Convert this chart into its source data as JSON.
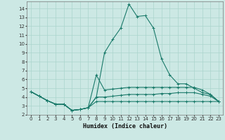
{
  "xlabel": "Humidex (Indice chaleur)",
  "ylabel": "",
  "xlim": [
    -0.5,
    23.5
  ],
  "ylim": [
    2,
    14.8
  ],
  "yticks": [
    2,
    3,
    4,
    5,
    6,
    7,
    8,
    9,
    10,
    11,
    12,
    13,
    14
  ],
  "xticks": [
    0,
    1,
    2,
    3,
    4,
    5,
    6,
    7,
    8,
    9,
    10,
    11,
    12,
    13,
    14,
    15,
    16,
    17,
    18,
    19,
    20,
    21,
    22,
    23
  ],
  "background_color": "#cce8e4",
  "grid_color": "#aad4cc",
  "line_color": "#1a7a6a",
  "lines": [
    {
      "x": [
        0,
        1,
        2,
        3,
        4,
        5,
        6,
        7,
        8,
        9,
        10,
        11,
        12,
        13,
        14,
        15,
        16,
        17,
        18,
        19,
        20,
        21,
        22,
        23
      ],
      "y": [
        4.6,
        4.1,
        3.6,
        3.2,
        3.2,
        2.5,
        2.6,
        2.8,
        4.0,
        9.0,
        10.5,
        11.8,
        14.5,
        13.1,
        13.2,
        11.8,
        8.3,
        6.5,
        5.5,
        5.5,
        5.0,
        4.5,
        4.3,
        3.5
      ]
    },
    {
      "x": [
        0,
        1,
        2,
        3,
        4,
        5,
        6,
        7,
        8,
        9,
        10,
        11,
        12,
        13,
        14,
        15,
        16,
        17,
        18,
        19,
        20,
        21,
        22,
        23
      ],
      "y": [
        4.6,
        4.1,
        3.6,
        3.2,
        3.2,
        2.5,
        2.6,
        2.8,
        6.5,
        4.8,
        4.9,
        5.0,
        5.1,
        5.1,
        5.1,
        5.1,
        5.1,
        5.1,
        5.1,
        5.1,
        5.1,
        4.8,
        4.3,
        3.5
      ]
    },
    {
      "x": [
        0,
        1,
        2,
        3,
        4,
        5,
        6,
        7,
        8,
        9,
        10,
        11,
        12,
        13,
        14,
        15,
        16,
        17,
        18,
        19,
        20,
        21,
        22,
        23
      ],
      "y": [
        4.6,
        4.1,
        3.6,
        3.2,
        3.2,
        2.5,
        2.6,
        2.8,
        4.0,
        4.0,
        4.1,
        4.2,
        4.3,
        4.3,
        4.3,
        4.3,
        4.4,
        4.4,
        4.5,
        4.5,
        4.5,
        4.3,
        4.1,
        3.5
      ]
    },
    {
      "x": [
        0,
        1,
        2,
        3,
        4,
        5,
        6,
        7,
        8,
        9,
        10,
        11,
        12,
        13,
        14,
        15,
        16,
        17,
        18,
        19,
        20,
        21,
        22,
        23
      ],
      "y": [
        4.6,
        4.1,
        3.6,
        3.2,
        3.2,
        2.5,
        2.6,
        2.8,
        3.5,
        3.5,
        3.5,
        3.5,
        3.5,
        3.5,
        3.5,
        3.5,
        3.5,
        3.5,
        3.5,
        3.5,
        3.5,
        3.5,
        3.5,
        3.5
      ]
    }
  ]
}
